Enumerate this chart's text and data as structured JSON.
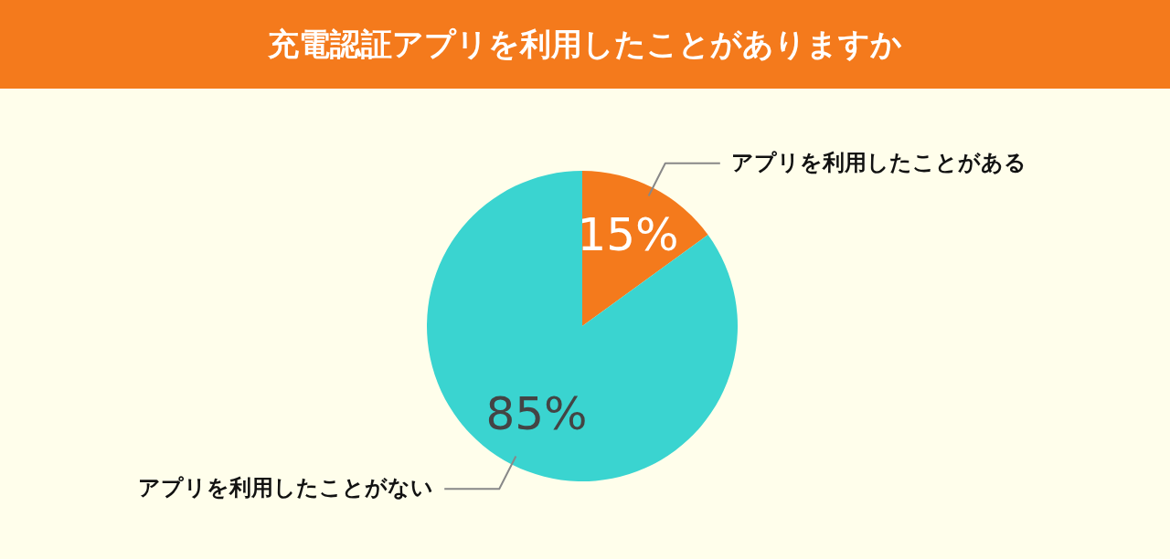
{
  "chart_data": {
    "type": "pie",
    "title": "充電認証アプリを利用したことがありますか",
    "categories": [
      "アプリを利用したことがある",
      "アプリを利用したことがない"
    ],
    "values": [
      15,
      85
    ],
    "colors": [
      "#f47a1c",
      "#3ad4d0"
    ],
    "value_labels": [
      "15%",
      "85%"
    ]
  }
}
